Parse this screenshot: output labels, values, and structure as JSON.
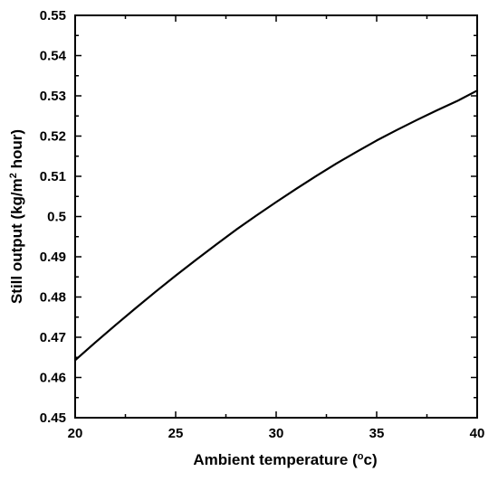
{
  "chart_data": {
    "type": "line",
    "title": "",
    "xlabel": "Ambient temperature (",
    "xlabel_unit_sup": "o",
    "xlabel_unit_tail": "c)",
    "ylabel": "Still output (kg/m",
    "ylabel_sup": "2",
    "ylabel_tail": " hour)",
    "xlim": [
      20,
      40
    ],
    "ylim": [
      0.45,
      0.55
    ],
    "x_ticks": [
      20,
      25,
      30,
      35,
      40
    ],
    "y_ticks": [
      0.45,
      0.46,
      0.47,
      0.48,
      0.49,
      0.5,
      0.51,
      0.52,
      0.53,
      0.54,
      0.55
    ],
    "y_tick_labels": [
      "0.45",
      "0.46",
      "0.47",
      "0.48",
      "0.49",
      "0.5",
      "0.51",
      "0.52",
      "0.53",
      "0.54",
      "0.55"
    ],
    "x_tick_labels": [
      "20",
      "25",
      "30",
      "35",
      "40"
    ],
    "grid": false,
    "legend": "none",
    "series": [
      {
        "color": "#000000",
        "x": [
          20,
          21,
          22,
          23,
          24,
          25,
          26,
          27,
          28,
          29,
          30,
          31,
          32,
          33,
          34,
          35,
          36,
          37,
          38,
          39,
          40
        ],
        "y": [
          0.4643,
          0.4687,
          0.473,
          0.4772,
          0.4813,
          0.4853,
          0.4892,
          0.493,
          0.4967,
          0.5002,
          0.5036,
          0.5069,
          0.5101,
          0.5132,
          0.5161,
          0.5189,
          0.5215,
          0.524,
          0.5264,
          0.5287,
          0.5313
        ]
      }
    ]
  }
}
